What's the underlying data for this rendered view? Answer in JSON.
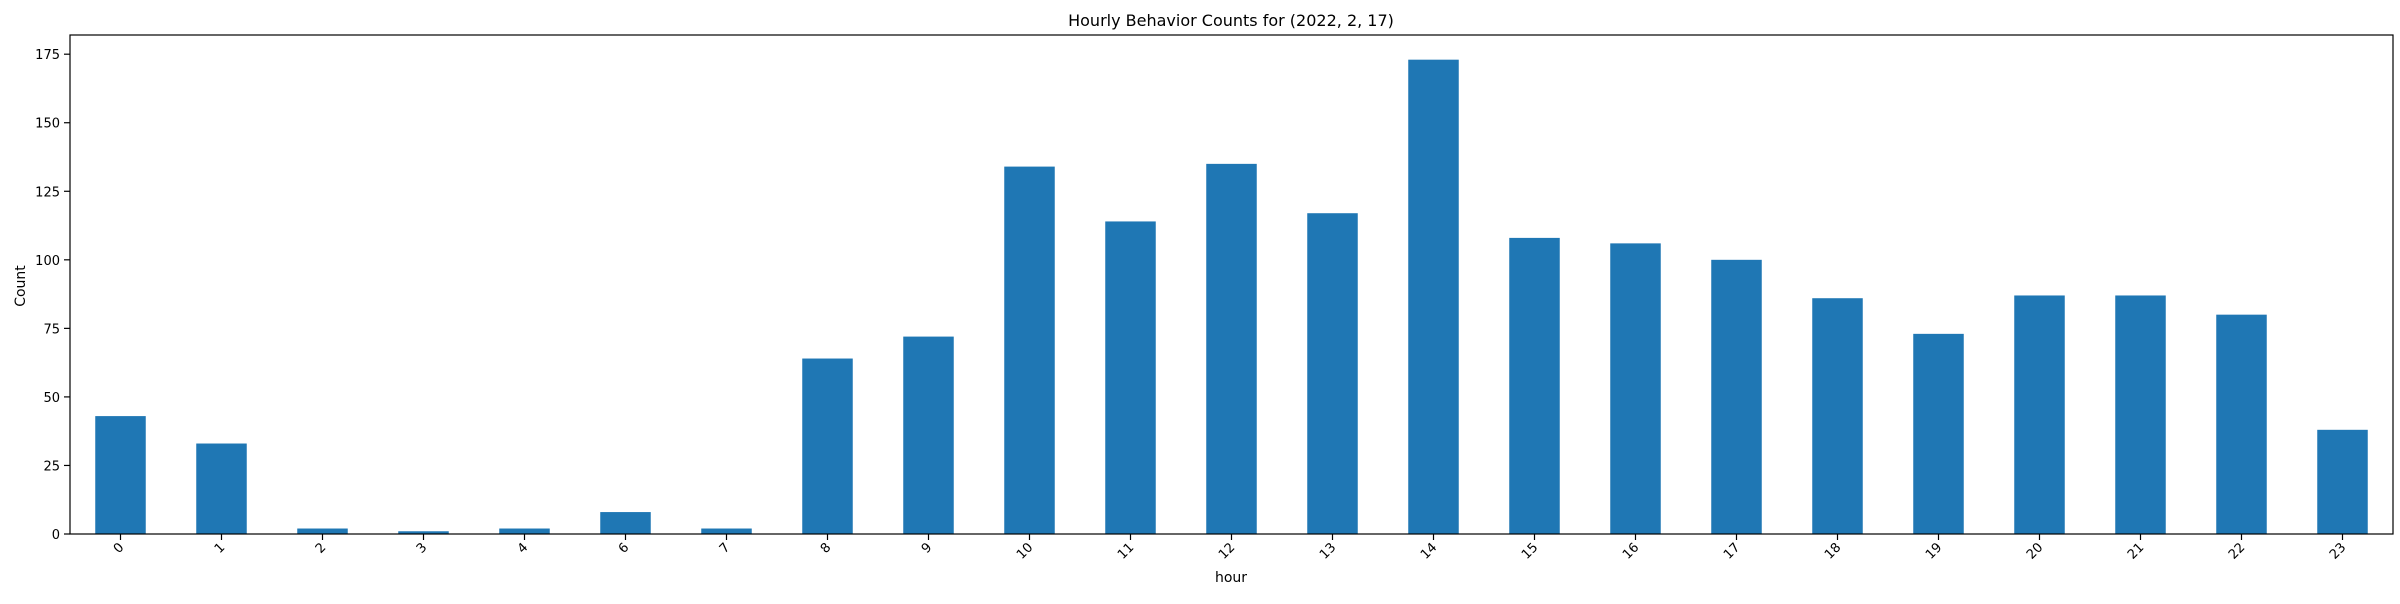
{
  "chart_data": {
    "type": "bar",
    "title": "Hourly Behavior Counts for (2022, 2, 17)",
    "xlabel": "hour",
    "ylabel": "Count",
    "categories": [
      "0",
      "1",
      "2",
      "3",
      "4",
      "6",
      "7",
      "8",
      "9",
      "10",
      "11",
      "12",
      "13",
      "14",
      "15",
      "16",
      "17",
      "18",
      "19",
      "20",
      "21",
      "22",
      "23"
    ],
    "values": [
      43,
      33,
      2,
      1,
      2,
      8,
      2,
      64,
      72,
      134,
      114,
      135,
      117,
      173,
      108,
      106,
      100,
      86,
      73,
      87,
      87,
      80,
      38
    ],
    "ylim": [
      0,
      182
    ],
    "yticks": [
      0,
      25,
      50,
      75,
      100,
      125,
      150,
      175
    ],
    "grid": false,
    "legend": "none",
    "bar_color": "#1f77b4"
  }
}
